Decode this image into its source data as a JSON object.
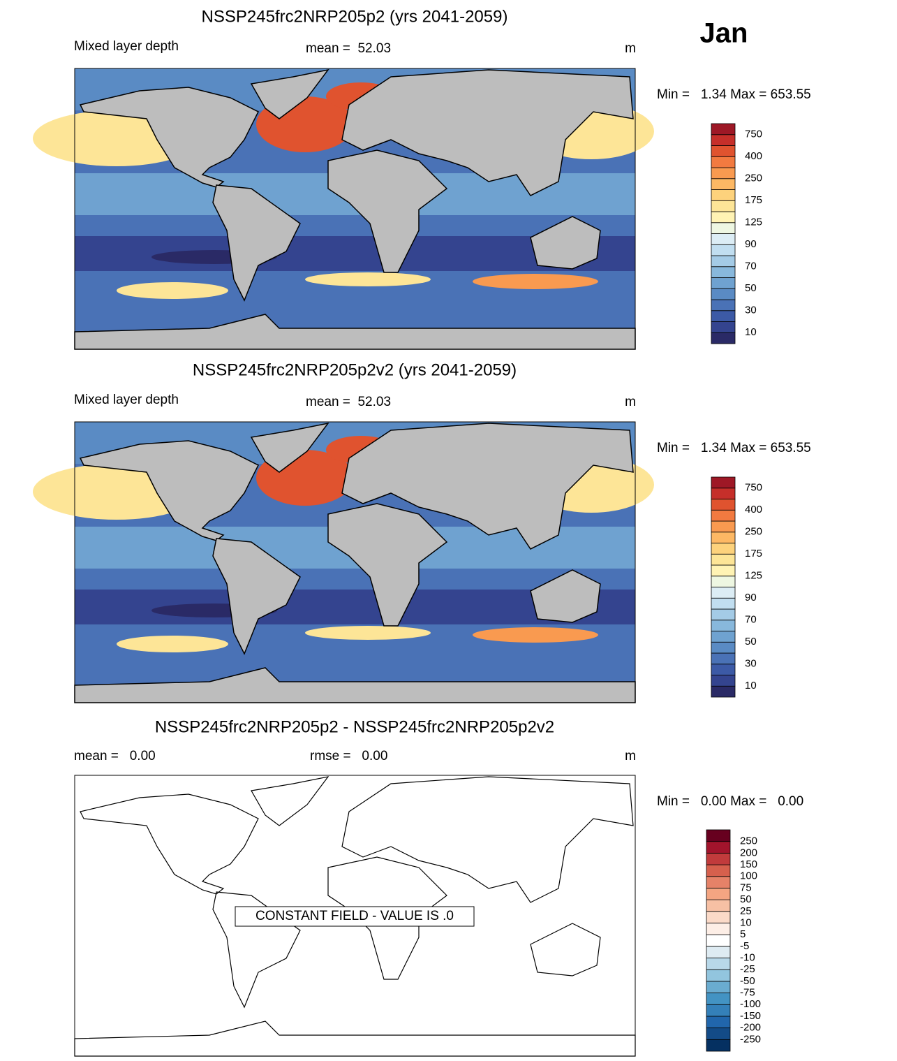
{
  "month": "Jan",
  "panels": [
    {
      "title": "NSSP245frc2NRP205p2 (yrs 2041-2059)",
      "left_label": "Mixed layer depth",
      "center_label": "mean =  52.03",
      "units": "m",
      "minmax": "Min =   1.34 Max = 653.55",
      "colorbar": {
        "levels": [
          10,
          null,
          30,
          null,
          50,
          null,
          70,
          null,
          90,
          null,
          125,
          null,
          175,
          null,
          250,
          null,
          400,
          null,
          750
        ],
        "colors": [
          "#2a2a66",
          "#34448f",
          "#3c5aa6",
          "#4a72b6",
          "#5a8bc4",
          "#6fa2d0",
          "#88b8dc",
          "#a4cbe6",
          "#c1def0",
          "#dcedf5",
          "#eef7e2",
          "#fff3b4",
          "#fde597",
          "#fdd27c",
          "#fdb864",
          "#f99a50",
          "#f27a40",
          "#e0532f",
          "#c62f2a",
          "#9e1826"
        ]
      }
    },
    {
      "title": "NSSP245frc2NRP205p2v2 (yrs 2041-2059)",
      "left_label": "Mixed layer depth",
      "center_label": "mean =  52.03",
      "units": "m",
      "minmax": "Min =   1.34 Max = 653.55",
      "colorbar": {
        "levels": [
          10,
          null,
          30,
          null,
          50,
          null,
          70,
          null,
          90,
          null,
          125,
          null,
          175,
          null,
          250,
          null,
          400,
          null,
          750
        ],
        "colors": [
          "#2a2a66",
          "#34448f",
          "#3c5aa6",
          "#4a72b6",
          "#5a8bc4",
          "#6fa2d0",
          "#88b8dc",
          "#a4cbe6",
          "#c1def0",
          "#dcedf5",
          "#eef7e2",
          "#fff3b4",
          "#fde597",
          "#fdd27c",
          "#fdb864",
          "#f99a50",
          "#f27a40",
          "#e0532f",
          "#c62f2a",
          "#9e1826"
        ]
      }
    },
    {
      "title": "NSSP245frc2NRP205p2 - NSSP245frc2NRP205p2v2",
      "left_label": "mean =   0.00",
      "center_label": "rmse =   0.00",
      "units": "m",
      "minmax": "Min =   0.00 Max =   0.00",
      "annotation": "CONSTANT FIELD - VALUE IS .0",
      "colorbar": {
        "levels": [
          -250,
          -200,
          -150,
          -100,
          -75,
          -50,
          -25,
          -10,
          -5,
          5,
          10,
          25,
          50,
          75,
          100,
          150,
          200,
          250
        ],
        "colors": [
          "#053061",
          "#134b87",
          "#2166ac",
          "#3480b9",
          "#4393c3",
          "#6aacd0",
          "#92c5de",
          "#b8d8e9",
          "#deebf2",
          "#ffffff",
          "#fdeee6",
          "#fbdac8",
          "#f7c0a4",
          "#f4a582",
          "#e58268",
          "#d6604d",
          "#c13b3c",
          "#a2142c",
          "#67001f"
        ]
      }
    }
  ]
}
